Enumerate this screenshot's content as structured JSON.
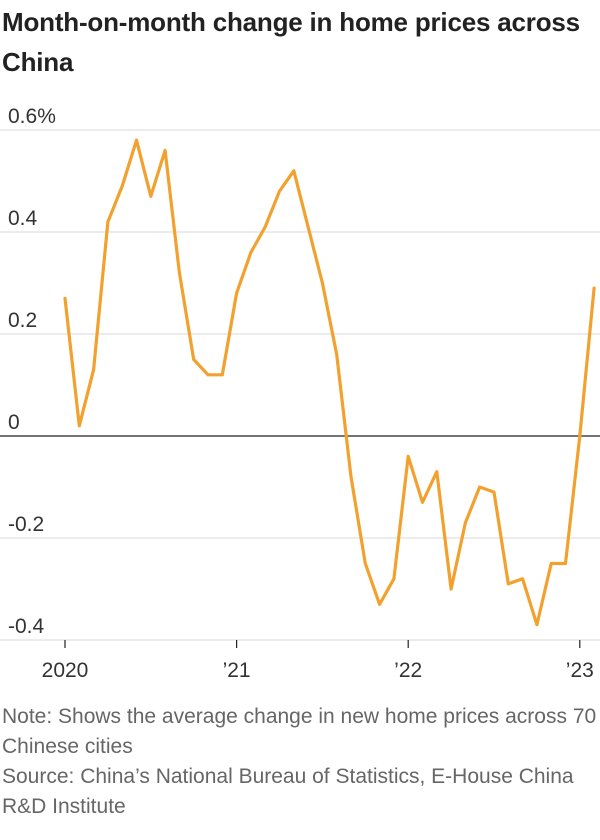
{
  "title": "Month-on-month change in home prices across China",
  "note": "Note: Shows the average change in new home prices across 70 Chinese cities",
  "source": "Source: China’s National Bureau of Statistics, E-House China R&D Institute",
  "chart_data": {
    "type": "line",
    "title": "Month-on-month change in home prices across China",
    "xlabel": "",
    "ylabel": "",
    "ylim": [
      -0.4,
      0.6
    ],
    "grid": true,
    "legend": "none",
    "line_color": "#f2a12e",
    "y_ticks": [
      {
        "value": 0.6,
        "label": "0.6%"
      },
      {
        "value": 0.4,
        "label": "0.4"
      },
      {
        "value": 0.2,
        "label": "0.2"
      },
      {
        "value": 0,
        "label": "0"
      },
      {
        "value": -0.2,
        "label": "-0.2"
      },
      {
        "value": -0.4,
        "label": "-0.4"
      }
    ],
    "x_ticks": [
      {
        "value": "2020-01",
        "label": "2020"
      },
      {
        "value": "2021-01",
        "label": "’21"
      },
      {
        "value": "2022-01",
        "label": "’22"
      },
      {
        "value": "2023-01",
        "label": "’23"
      }
    ],
    "x": [
      "2020-01",
      "2020-02",
      "2020-03",
      "2020-04",
      "2020-05",
      "2020-06",
      "2020-07",
      "2020-08",
      "2020-09",
      "2020-10",
      "2020-11",
      "2020-12",
      "2021-01",
      "2021-02",
      "2021-03",
      "2021-04",
      "2021-05",
      "2021-06",
      "2021-07",
      "2021-08",
      "2021-09",
      "2021-10",
      "2021-11",
      "2021-12",
      "2022-01",
      "2022-02",
      "2022-03",
      "2022-04",
      "2022-05",
      "2022-06",
      "2022-07",
      "2022-08",
      "2022-09",
      "2022-10",
      "2022-11",
      "2022-12",
      "2023-01",
      "2023-02"
    ],
    "series": [
      {
        "values": [
          0.27,
          0.02,
          0.13,
          0.42,
          0.49,
          0.58,
          0.47,
          0.56,
          0.32,
          0.15,
          0.12,
          0.12,
          0.28,
          0.36,
          0.41,
          0.48,
          0.52,
          0.41,
          0.3,
          0.16,
          -0.08,
          -0.25,
          -0.33,
          -0.28,
          -0.04,
          -0.13,
          -0.07,
          -0.3,
          -0.17,
          -0.1,
          -0.11,
          -0.29,
          -0.28,
          -0.37,
          -0.25,
          -0.25,
          0.0,
          0.29
        ]
      }
    ]
  }
}
